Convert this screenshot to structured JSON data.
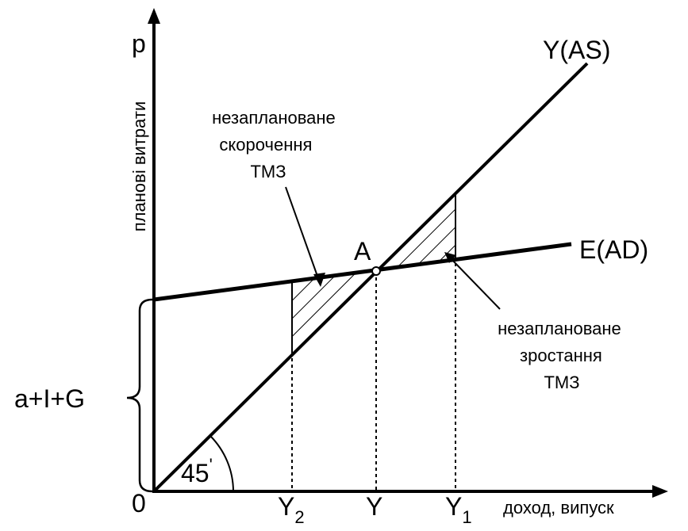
{
  "axes": {
    "y_label": "р",
    "y_title": "планові витрати",
    "x_title": "доход, випуск",
    "origin": "0"
  },
  "lines": {
    "as": "Y(AS)",
    "ad": "E(AD)"
  },
  "point": {
    "label": "A"
  },
  "x_ticks": {
    "y2": "Y",
    "y2_sub": "2",
    "y": "Y",
    "y1": "Y",
    "y1_sub": "1"
  },
  "angle": {
    "value": "45",
    "mark": "'"
  },
  "intercept": "a+I+G",
  "annotations": {
    "shortage": [
      "незаплановане",
      "скорочення",
      "ТМЗ"
    ],
    "surplus": [
      "незаплановане",
      "зростання",
      "ТМЗ"
    ]
  }
}
